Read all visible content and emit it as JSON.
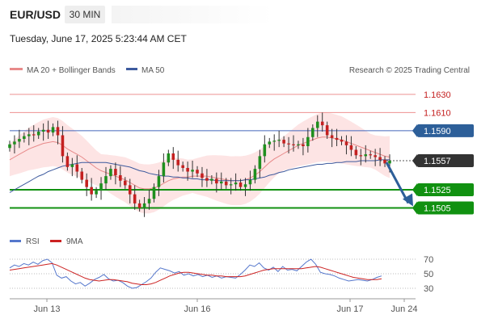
{
  "header": {
    "symbol": "EUR/USD",
    "timeframe": "30 MIN",
    "datetime": "Tuesday, June 17, 2025 5:23:44 AM CET"
  },
  "legend": {
    "ma20_label": "MA 20 + Bollinger Bands",
    "ma50_label": "MA 50",
    "rsi_label": "RSI",
    "ma9_label": "9MA",
    "research": "Research © 2025 Trading Central"
  },
  "colors": {
    "ma20": "#e88a8a",
    "ma50": "#3d5a9e",
    "bands_fill": "#fde4e4",
    "up_candle": "#1e8f1e",
    "down_candle": "#c42020",
    "support_line": "#119111",
    "pivot_line": "#4466bb",
    "resistance_line": "#ee9090",
    "rsi_line": "#5577cc",
    "rsi_ma_line": "#cc2222",
    "arrow": "#2d5f99"
  },
  "chart_data": [
    {
      "type": "candlestick",
      "title": "EUR/USD 30 MIN",
      "x_ticks": [
        "Jun 13",
        "Jun 16",
        "Jun 17",
        "Jun 24"
      ],
      "ylim": [
        1.1485,
        1.1645
      ],
      "levels": [
        {
          "label": "1.1630",
          "value": 1.163,
          "kind": "resistance"
        },
        {
          "label": "1.1610",
          "value": 1.161,
          "kind": "resistance"
        },
        {
          "label": "1.1590",
          "value": 1.159,
          "kind": "pivot"
        },
        {
          "label": "1.1557",
          "value": 1.1557,
          "kind": "last"
        },
        {
          "label": "1.1525",
          "value": 1.1525,
          "kind": "support"
        },
        {
          "label": "1.1505",
          "value": 1.1505,
          "kind": "support"
        }
      ],
      "close_series": [
        1.1575,
        1.1578,
        1.1581,
        1.1584,
        1.1586,
        1.1585,
        1.1589,
        1.1591,
        1.1588,
        1.1594,
        1.1585,
        1.1562,
        1.155,
        1.1553,
        1.1545,
        1.1536,
        1.1528,
        1.152,
        1.1524,
        1.1532,
        1.154,
        1.1548,
        1.1541,
        1.1535,
        1.153,
        1.152,
        1.151,
        1.1505,
        1.151,
        1.1515,
        1.1528,
        1.154,
        1.1555,
        1.1565,
        1.1558,
        1.1552,
        1.1549,
        1.1545,
        1.1547,
        1.1543,
        1.1538,
        1.1535,
        1.1537,
        1.1532,
        1.1534,
        1.153,
        1.1531,
        1.1533,
        1.1528,
        1.1531,
        1.1536,
        1.1548,
        1.1562,
        1.1575,
        1.1578,
        1.1579,
        1.158,
        1.1576,
        1.1575,
        1.1574,
        1.1575,
        1.1573,
        1.1583,
        1.1593,
        1.16,
        1.1596,
        1.1585,
        1.1582,
        1.158,
        1.1578,
        1.1574,
        1.1569,
        1.1563,
        1.1562,
        1.1564,
        1.1563,
        1.1561,
        1.1558,
        1.1554,
        1.1557
      ],
      "ma20_series": [
        1.1558,
        1.1561,
        1.1564,
        1.1567,
        1.157,
        1.1572,
        1.1574,
        1.1576,
        1.1577,
        1.1578,
        1.1577,
        1.1574,
        1.157,
        1.1567,
        1.1564,
        1.1561,
        1.1557,
        1.1553,
        1.1549,
        1.1546,
        1.1544,
        1.1542,
        1.154,
        1.1538,
        1.1536,
        1.1533,
        1.153,
        1.1527,
        1.1526,
        1.1526,
        1.1527,
        1.1529,
        1.1532,
        1.1535,
        1.1537,
        1.1538,
        1.1539,
        1.1539,
        1.154,
        1.154,
        1.154,
        1.154,
        1.1539,
        1.1538,
        1.1537,
        1.1536,
        1.1535,
        1.1535,
        1.1535,
        1.1536,
        1.1538,
        1.1541,
        1.1545,
        1.155,
        1.1555,
        1.1559,
        1.1562,
        1.1565,
        1.1568,
        1.1571,
        1.1574,
        1.1576,
        1.1578,
        1.158,
        1.1582,
        1.1583,
        1.1583,
        1.1582,
        1.1581,
        1.158,
        1.1578,
        1.1576,
        1.1574,
        1.1572,
        1.157,
        1.1568,
        1.1566,
        1.1564,
        1.1562,
        1.1561
      ],
      "ma50_series": [
        1.1522,
        1.1525,
        1.1528,
        1.1531,
        1.1534,
        1.1537,
        1.154,
        1.1542,
        1.1545,
        1.1547,
        1.1549,
        1.1551,
        1.1552,
        1.1553,
        1.1554,
        1.1555,
        1.1555,
        1.1555,
        1.1555,
        1.1555,
        1.1555,
        1.1554,
        1.1553,
        1.1552,
        1.1551,
        1.155,
        1.1548,
        1.1546,
        1.1545,
        1.1543,
        1.1542,
        1.1541,
        1.154,
        1.154,
        1.1539,
        1.1539,
        1.1538,
        1.1538,
        1.1537,
        1.1537,
        1.1536,
        1.1536,
        1.1536,
        1.1535,
        1.1535,
        1.1535,
        1.1535,
        1.1535,
        1.1535,
        1.1536,
        1.1536,
        1.1537,
        1.1538,
        1.1539,
        1.1541,
        1.1542,
        1.1544,
        1.1545,
        1.1547,
        1.1548,
        1.1549,
        1.155,
        1.1551,
        1.1552,
        1.1553,
        1.1553,
        1.1554,
        1.1554,
        1.1555,
        1.1555,
        1.1556,
        1.1556,
        1.1556,
        1.1557,
        1.1557,
        1.1557,
        1.1557,
        1.1558,
        1.1558,
        1.1558
      ]
    },
    {
      "type": "line",
      "title": "RSI",
      "y_ticks": [
        70,
        50,
        30
      ],
      "ylim": [
        20,
        80
      ],
      "series": [
        {
          "name": "RSI",
          "values": [
            58,
            62,
            60,
            64,
            62,
            66,
            63,
            68,
            70,
            65,
            48,
            44,
            46,
            40,
            36,
            38,
            33,
            37,
            42,
            45,
            49,
            43,
            40,
            41,
            38,
            33,
            30,
            31,
            35,
            39,
            44,
            52,
            58,
            56,
            54,
            51,
            53,
            48,
            50,
            47,
            49,
            46,
            48,
            45,
            47,
            44,
            46,
            45,
            44,
            49,
            55,
            62,
            60,
            65,
            58,
            55,
            59,
            53,
            60,
            55,
            56,
            54,
            60,
            66,
            70,
            63,
            52,
            50,
            49,
            47,
            44,
            42,
            40,
            41,
            42,
            41,
            40,
            42,
            45,
            47
          ]
        },
        {
          "name": "9MA",
          "values": [
            55,
            56,
            57,
            58,
            59,
            60,
            61,
            62,
            63,
            64,
            62,
            59,
            56,
            53,
            50,
            47,
            44,
            42,
            41,
            40,
            41,
            42,
            42,
            41,
            40,
            39,
            37,
            36,
            35,
            35,
            36,
            38,
            41,
            44,
            47,
            49,
            51,
            52,
            52,
            51,
            50,
            49,
            48,
            48,
            47,
            47,
            46,
            46,
            46,
            46,
            47,
            49,
            51,
            53,
            55,
            56,
            57,
            57,
            57,
            57,
            57,
            57,
            57,
            58,
            59,
            60,
            59,
            57,
            55,
            53,
            51,
            49,
            47,
            45,
            44,
            43,
            42,
            42,
            42,
            43
          ]
        }
      ]
    }
  ]
}
